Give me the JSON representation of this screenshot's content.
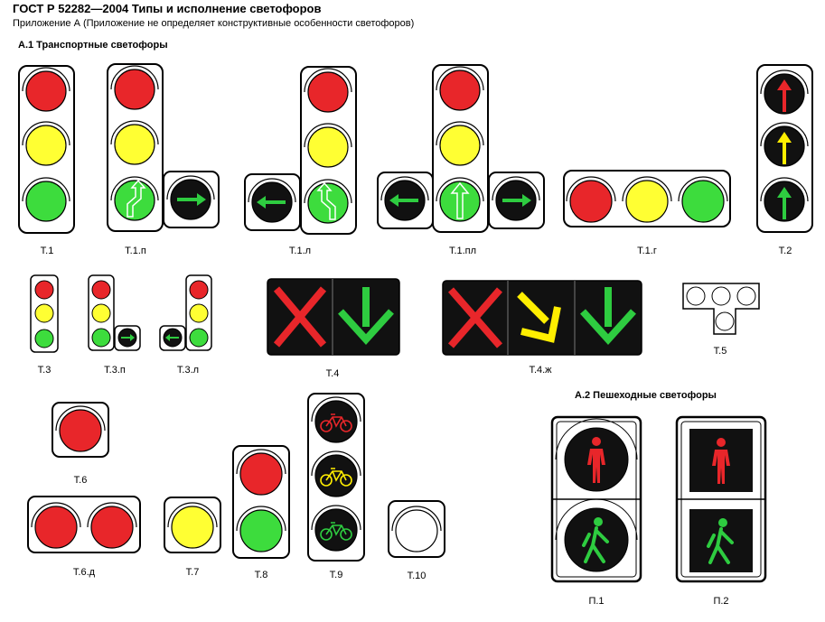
{
  "header": {
    "title": "ГОСТ Р 52282—2004  Типы и исполнение светофоров",
    "subtitle": "Приложение А   (Приложение не определяет конструктивные особенности светофоров)"
  },
  "sections": {
    "transport": "А.1 Транспортные светофоры",
    "pedestrian": "А.2 Пешеходные светофоры"
  },
  "labels": {
    "t1": "Т.1",
    "t1p": "Т.1.п",
    "t1l": "Т.1.л",
    "t1pl": "Т.1.пл",
    "t1g": "Т.1.г",
    "t2": "Т.2",
    "t3": "Т.3",
    "t3p": "Т.3.п",
    "t3l": "Т.3.л",
    "t4": "Т.4",
    "t4zh": "Т.4.ж",
    "t5": "Т.5",
    "t6": "Т.6",
    "t6d": "Т.6.д",
    "t7": "Т.7",
    "t8": "Т.8",
    "t9": "Т.9",
    "t10": "Т.10",
    "p1": "П.1",
    "p2": "П.2"
  },
  "colors": {
    "red": "#e8262a",
    "yellow": "#ffff33",
    "green": "#3ddc3d",
    "dark": "#111111",
    "arrow_green": "#2ecc40",
    "arrow_red": "#e8262a",
    "arrow_yellow": "#ffee00"
  }
}
